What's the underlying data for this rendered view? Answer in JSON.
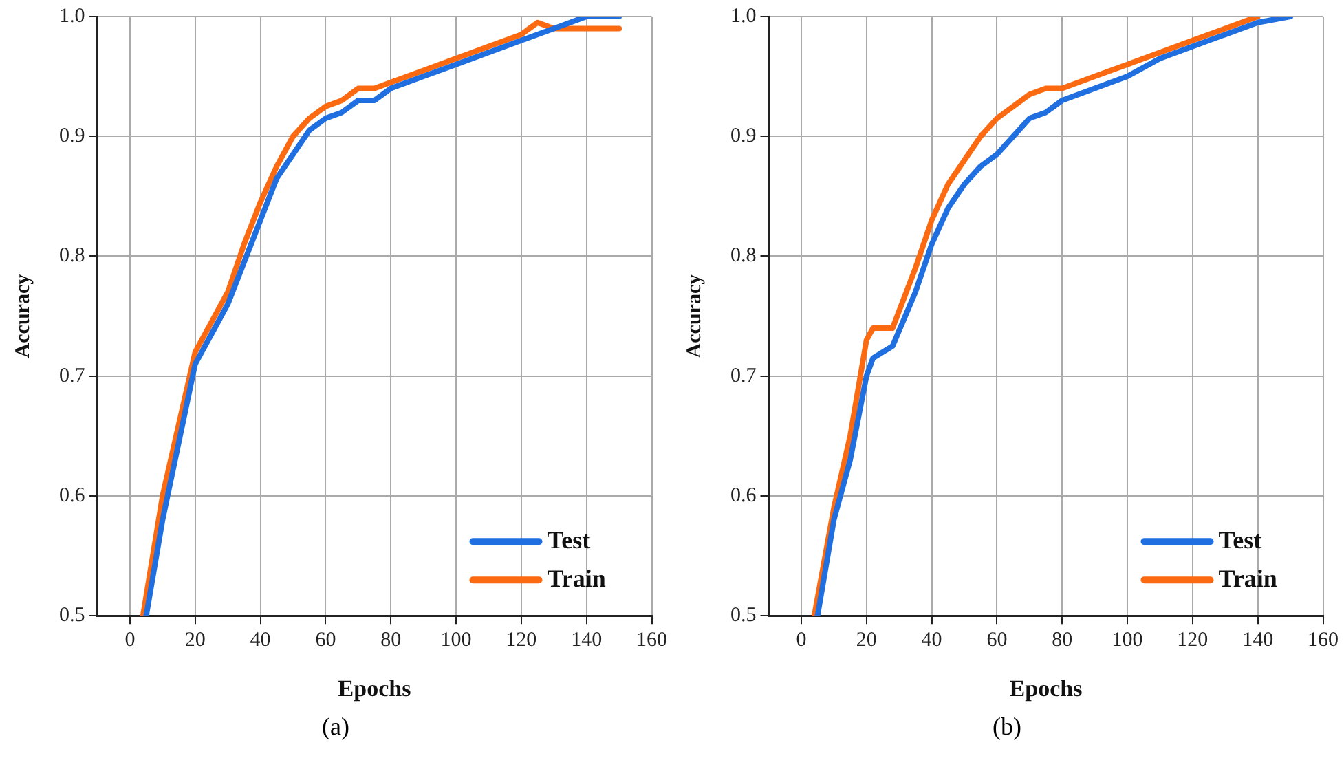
{
  "chart_data": [
    {
      "type": "line",
      "xlabel": "Epochs",
      "ylabel": "Accuracy",
      "annotations": [
        "(a)"
      ],
      "xlim": [
        -10,
        160
      ],
      "xticks": [
        0,
        20,
        40,
        60,
        80,
        100,
        120,
        140,
        160
      ],
      "ylim": [
        0.5,
        1
      ],
      "yticks": [
        0.5,
        0.6,
        0.7,
        0.8,
        0.9,
        {
          "value": 1,
          "label": "1.0"
        }
      ],
      "grid": true,
      "legend": "bottom right",
      "marker": "none",
      "line_style": "solid",
      "series": [
        {
          "name": "Test",
          "color": "#1f6fe0",
          "x": [
            5,
            10,
            15,
            20,
            25,
            30,
            35,
            40,
            45,
            50,
            55,
            60,
            65,
            70,
            75,
            80,
            90,
            100,
            110,
            120,
            130,
            140,
            150
          ],
          "values": [
            0.5,
            0.58,
            0.645,
            0.71,
            0.735,
            0.76,
            0.795,
            0.83,
            0.865,
            0.885,
            0.905,
            0.915,
            0.92,
            0.93,
            0.93,
            0.94,
            0.95,
            0.96,
            0.97,
            0.98,
            0.99,
            1,
            1
          ]
        },
        {
          "name": "Train",
          "color": "#fb6a10",
          "x": [
            4,
            10,
            15,
            20,
            25,
            30,
            35,
            40,
            45,
            50,
            55,
            60,
            65,
            70,
            75,
            80,
            90,
            100,
            110,
            120,
            125,
            130,
            150
          ],
          "values": [
            0.5,
            0.6,
            0.66,
            0.72,
            0.745,
            0.77,
            0.81,
            0.845,
            0.875,
            0.9,
            0.915,
            0.925,
            0.93,
            0.94,
            0.94,
            0.945,
            0.955,
            0.965,
            0.975,
            0.985,
            0.995,
            0.99,
            0.99
          ]
        }
      ]
    },
    {
      "type": "line",
      "xlabel": "Epochs",
      "ylabel": "Accuracy",
      "annotations": [
        "(b)"
      ],
      "xlim": [
        -10,
        160
      ],
      "xticks": [
        0,
        20,
        40,
        60,
        80,
        100,
        120,
        140,
        160
      ],
      "ylim": [
        0.5,
        1
      ],
      "yticks": [
        0.5,
        0.6,
        0.7,
        0.8,
        0.9,
        {
          "value": 1,
          "label": "1.0"
        }
      ],
      "grid": true,
      "legend": "bottom right",
      "marker": "none",
      "line_style": "solid",
      "series": [
        {
          "name": "Test",
          "color": "#1f6fe0",
          "x": [
            5,
            10,
            15,
            20,
            22,
            28,
            35,
            40,
            45,
            50,
            55,
            60,
            65,
            70,
            75,
            80,
            85,
            90,
            100,
            110,
            120,
            130,
            140,
            150
          ],
          "values": [
            0.5,
            0.58,
            0.63,
            0.7,
            0.715,
            0.725,
            0.77,
            0.81,
            0.84,
            0.86,
            0.875,
            0.885,
            0.9,
            0.915,
            0.92,
            0.93,
            0.935,
            0.94,
            0.95,
            0.965,
            0.975,
            0.985,
            0.995,
            1
          ]
        },
        {
          "name": "Train",
          "color": "#fb6a10",
          "x": [
            4,
            10,
            15,
            20,
            22,
            28,
            35,
            40,
            45,
            50,
            55,
            60,
            65,
            70,
            75,
            80,
            90,
            100,
            110,
            120,
            130,
            140
          ],
          "values": [
            0.5,
            0.59,
            0.65,
            0.73,
            0.74,
            0.74,
            0.79,
            0.83,
            0.86,
            0.88,
            0.9,
            0.915,
            0.925,
            0.935,
            0.94,
            0.94,
            0.95,
            0.96,
            0.97,
            0.98,
            0.99,
            1
          ]
        }
      ]
    }
  ]
}
